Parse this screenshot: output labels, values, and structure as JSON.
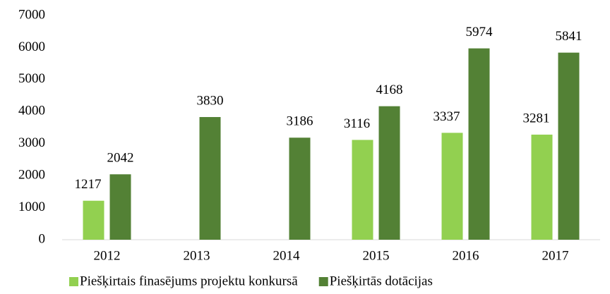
{
  "chart_data": {
    "type": "bar",
    "categories": [
      "2012",
      "2013",
      "2014",
      "2015",
      "2016",
      "2017"
    ],
    "series": [
      {
        "name": "Piešķirtais finasējums projektu konkursā",
        "color": "#92d050",
        "values": [
          1217,
          null,
          null,
          3116,
          3337,
          3281
        ]
      },
      {
        "name": "Piešķirtās dotācijas",
        "color": "#538135",
        "values": [
          2042,
          3830,
          3186,
          4168,
          5974,
          5841
        ]
      }
    ],
    "ylim": [
      0,
      7000
    ],
    "yticks": [
      0,
      1000,
      2000,
      3000,
      4000,
      5000,
      6000,
      7000
    ],
    "grid": false,
    "legend": "bottom"
  }
}
